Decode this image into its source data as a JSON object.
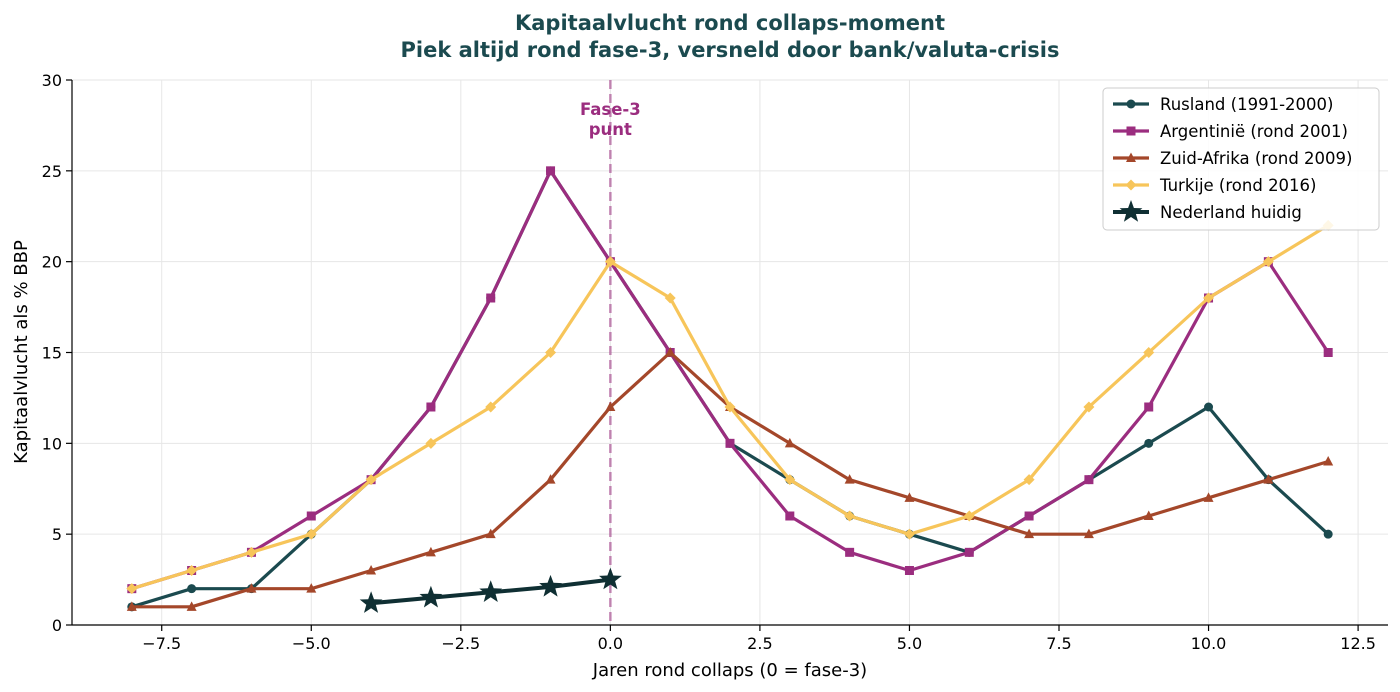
{
  "chart_data": {
    "type": "line",
    "title_line1": "Kapitaalvlucht rond collaps-moment",
    "title_line2": "Piek altijd rond fase-3, versneld door bank/valuta-crisis",
    "xlabel": "Jaren rond collaps (0 = fase-3)",
    "ylabel": "Kapitaalvlucht als % BBP",
    "xlim": [
      -9.0,
      13.0
    ],
    "ylim": [
      0,
      30
    ],
    "xticks": [
      -7.5,
      -5.0,
      -2.5,
      0.0,
      2.5,
      5.0,
      7.5,
      10.0,
      12.5
    ],
    "xtick_labels": [
      "−7.5",
      "−5.0",
      "−2.5",
      "0.0",
      "2.5",
      "5.0",
      "7.5",
      "10.0",
      "12.5"
    ],
    "yticks": [
      0,
      5,
      10,
      15,
      20,
      25,
      30
    ],
    "ytick_labels": [
      "0",
      "5",
      "10",
      "15",
      "20",
      "25",
      "30"
    ],
    "grid": true,
    "legend_position": "top-right",
    "title_color": "#1b4a4f",
    "annotation": {
      "text_line1": "Fase-3",
      "text_line2": "punt",
      "x": 0,
      "color": "#9b2d7f"
    },
    "series": [
      {
        "name": "Rusland (1991-2000)",
        "color": "#1b4a4f",
        "marker": "circle",
        "x": [
          -8,
          -7,
          -6,
          -5,
          -4,
          -3,
          -2,
          -1,
          0,
          1,
          2,
          3,
          4,
          5,
          6,
          7,
          8,
          9,
          10,
          11,
          12
        ],
        "values": [
          1,
          2,
          2,
          5,
          8,
          12,
          18,
          25,
          20,
          15,
          10,
          8,
          6,
          5,
          4,
          6,
          8,
          10,
          12,
          8,
          5
        ]
      },
      {
        "name": "Argentinië (rond 2001)",
        "color": "#9b2d7f",
        "marker": "square",
        "x": [
          -8,
          -7,
          -6,
          -5,
          -4,
          -3,
          -2,
          -1,
          0,
          1,
          2,
          3,
          4,
          5,
          6,
          7,
          8,
          9,
          10,
          11,
          12
        ],
        "values": [
          2,
          3,
          4,
          6,
          8,
          12,
          18,
          25,
          20,
          15,
          10,
          6,
          4,
          3,
          4,
          6,
          8,
          12,
          18,
          20,
          15
        ]
      },
      {
        "name": "Zuid-Afrika (rond 2009)",
        "color": "#a4472a",
        "marker": "triangle",
        "x": [
          -8,
          -7,
          -6,
          -5,
          -4,
          -3,
          -2,
          -1,
          0,
          1,
          2,
          3,
          4,
          5,
          6,
          7,
          8,
          9,
          10,
          11,
          12
        ],
        "values": [
          1,
          1,
          2,
          2,
          3,
          4,
          5,
          8,
          12,
          15,
          12,
          10,
          8,
          7,
          6,
          5,
          5,
          6,
          7,
          8,
          9
        ]
      },
      {
        "name": "Turkije (rond 2016)",
        "color": "#f7c55a",
        "marker": "diamond",
        "x": [
          -8,
          -7,
          -6,
          -5,
          -4,
          -3,
          -2,
          -1,
          0,
          1,
          2,
          3,
          4,
          5,
          6,
          7,
          8,
          9,
          10,
          11,
          12
        ],
        "values": [
          2,
          3,
          4,
          5,
          8,
          10,
          12,
          15,
          20,
          18,
          12,
          8,
          6,
          5,
          6,
          8,
          12,
          15,
          18,
          20,
          22
        ]
      },
      {
        "name": "Nederland huidig",
        "color": "#0f2f33",
        "marker": "star",
        "x": [
          -4,
          -3,
          -2,
          -1,
          0
        ],
        "values": [
          1.2,
          1.5,
          1.8,
          2.1,
          2.5
        ]
      }
    ]
  }
}
